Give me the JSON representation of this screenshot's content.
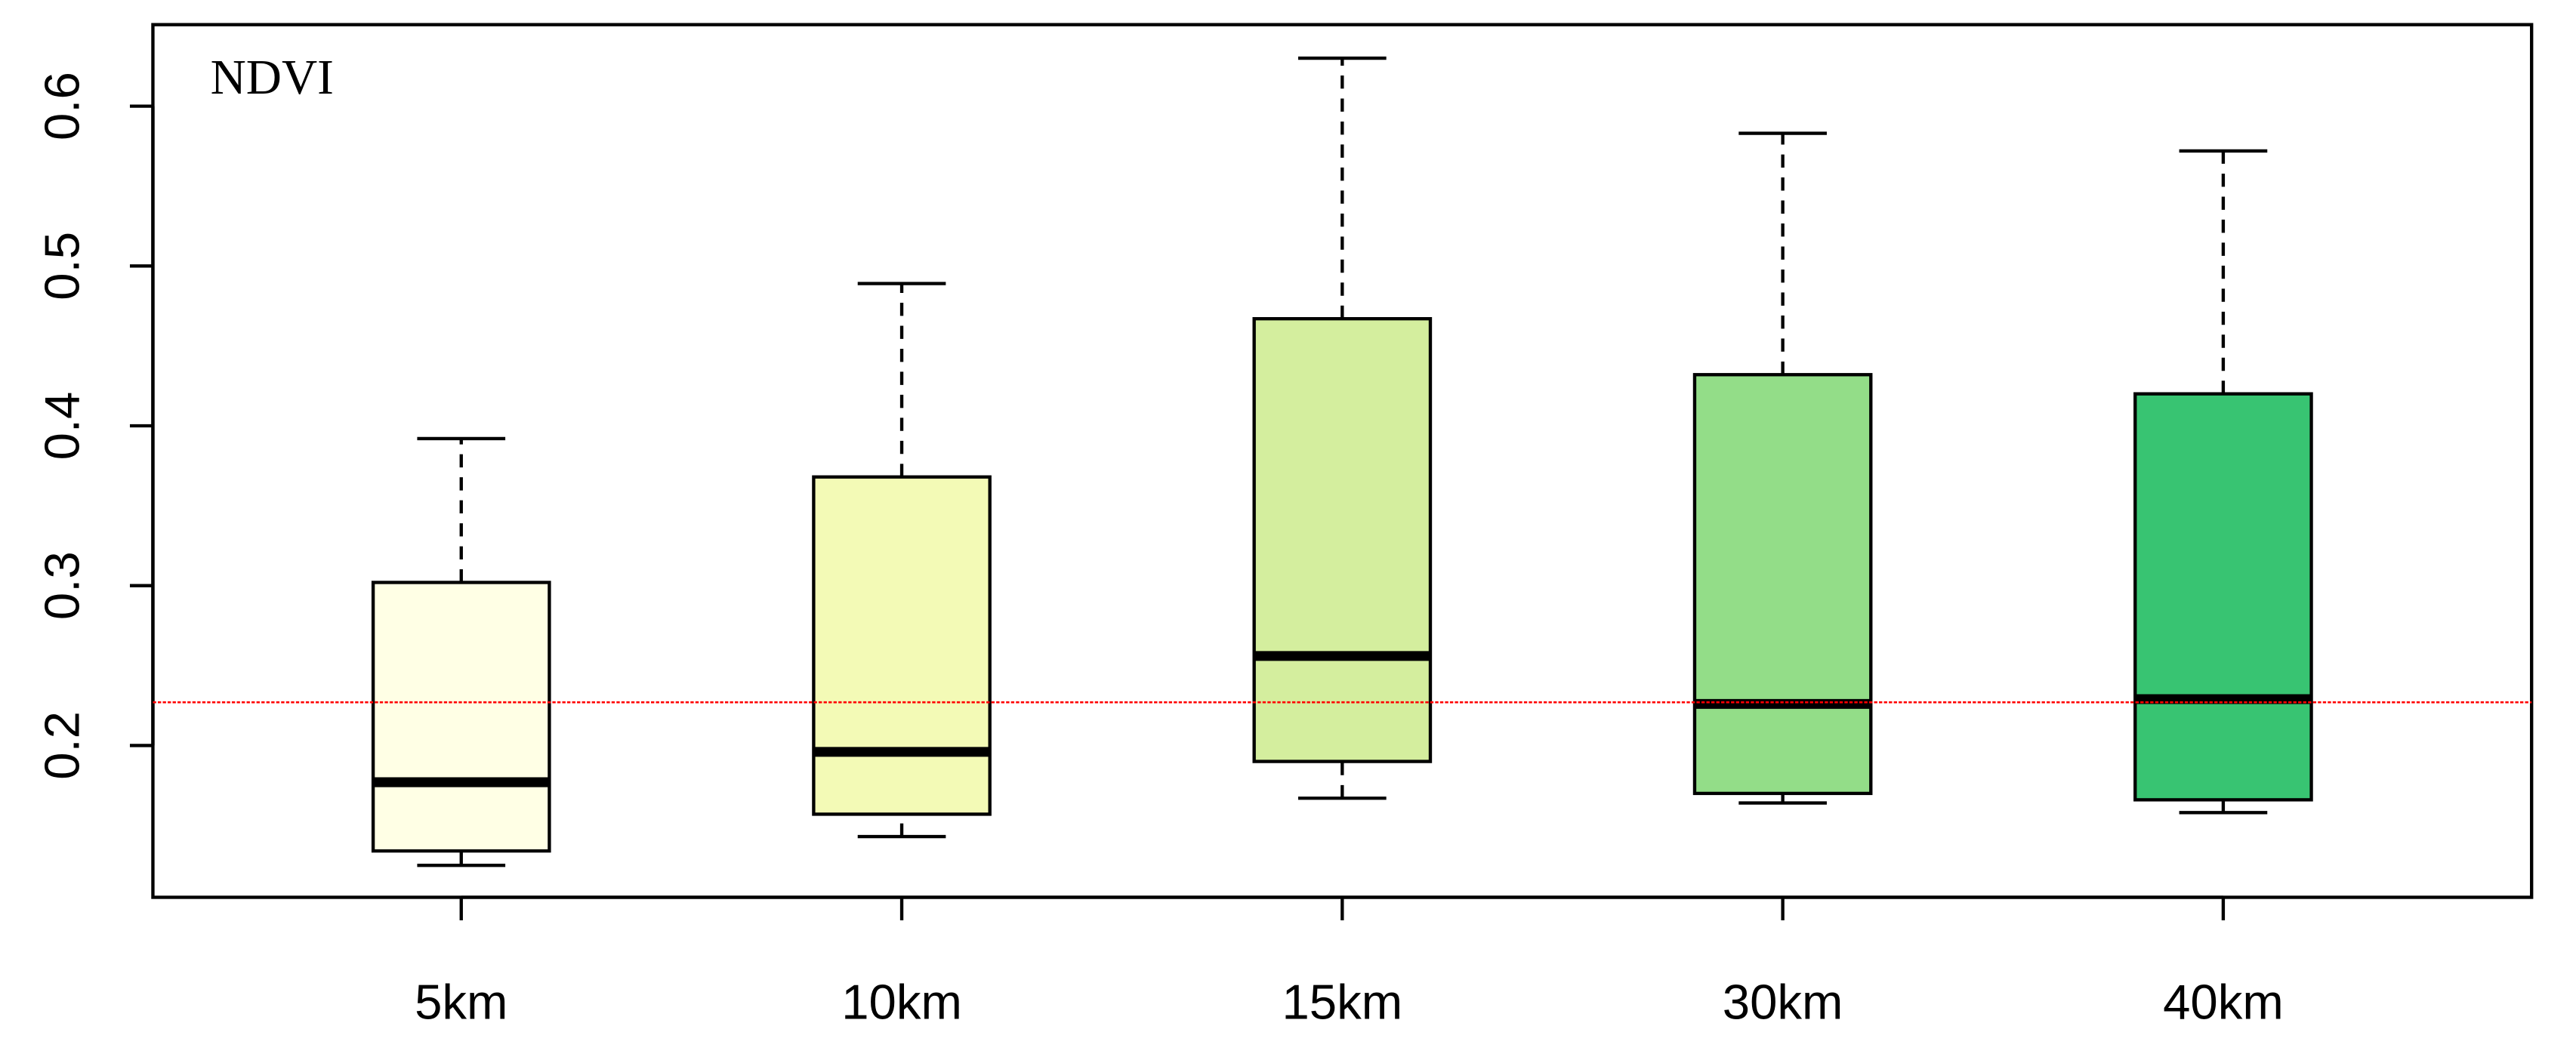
{
  "chart_data": {
    "type": "box",
    "annotation": "NDVI",
    "categories": [
      "5km",
      "10km",
      "15km",
      "30km",
      "40km"
    ],
    "colors": [
      "#FFFFE5",
      "#F3FAB6",
      "#D4EE9E",
      "#93DD88",
      "#38C472"
    ],
    "boxes": [
      {
        "min": 0.125,
        "q1": 0.134,
        "median": 0.177,
        "q3": 0.302,
        "max": 0.392
      },
      {
        "min": 0.143,
        "q1": 0.157,
        "median": 0.196,
        "q3": 0.368,
        "max": 0.489
      },
      {
        "min": 0.167,
        "q1": 0.19,
        "median": 0.256,
        "q3": 0.467,
        "max": 0.63
      },
      {
        "min": 0.164,
        "q1": 0.17,
        "median": 0.226,
        "q3": 0.432,
        "max": 0.583
      },
      {
        "min": 0.158,
        "q1": 0.166,
        "median": 0.229,
        "q3": 0.42,
        "max": 0.572
      }
    ],
    "reference_line": {
      "value": 0.227,
      "color": "#ff0000"
    },
    "ylim": [
      0.105,
      0.651
    ],
    "yticks": [
      0.2,
      0.3,
      0.4,
      0.5,
      0.6
    ]
  }
}
